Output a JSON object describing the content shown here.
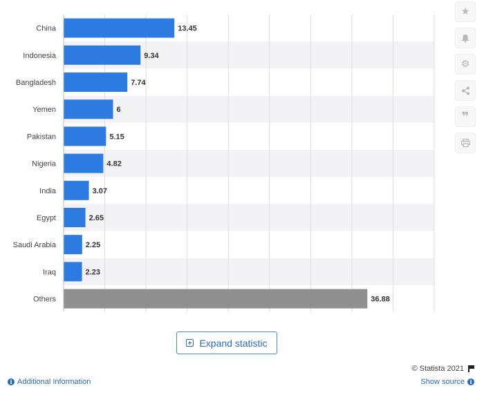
{
  "chart_data": {
    "type": "bar",
    "orientation": "horizontal",
    "categories": [
      "China",
      "Indonesia",
      "Bangladesh",
      "Yemen",
      "Pakistan",
      "Nigeria",
      "India",
      "Egypt",
      "Saudi Arabia",
      "Iraq",
      "Others"
    ],
    "values": [
      13.45,
      9.34,
      7.74,
      6,
      5.15,
      4.82,
      3.07,
      2.65,
      2.25,
      2.23,
      36.88
    ],
    "value_labels": [
      "13.45",
      "9.34",
      "7.74",
      "6",
      "5.15",
      "4.82",
      "3.07",
      "2.65",
      "2.25",
      "2.23",
      "36.88"
    ],
    "xlim": [
      0,
      45
    ],
    "grid": true,
    "colors": {
      "bar": "#2d7be0",
      "others": "#8f8f8f",
      "stripe": "#f3f3f7",
      "grid": "#dddddd"
    },
    "title": "",
    "xlabel": "",
    "ylabel": ""
  },
  "toolbar": {
    "icons": [
      "star-icon",
      "bell-icon",
      "gear-icon",
      "share-icon",
      "quote-icon",
      "print-icon"
    ]
  },
  "actions": {
    "expand_label": "Expand statistic"
  },
  "footer": {
    "copyright": "© Statista 2021",
    "additional_info": "Additional Information",
    "show_source": "Show source"
  }
}
